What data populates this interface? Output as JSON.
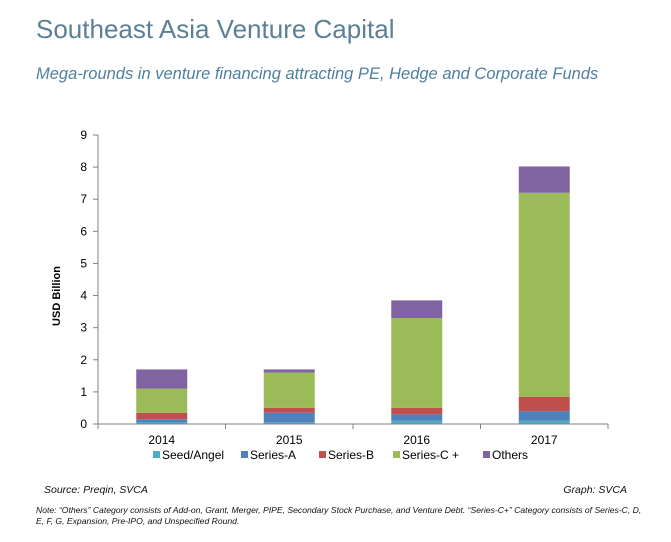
{
  "header": {
    "title": "Southeast Asia Venture Capital",
    "subtitle": "Mega-rounds in venture financing attracting PE, Hedge and Corporate Funds"
  },
  "footer": {
    "source": "Source: Preqin, SVCA",
    "graph_credit": "Graph: SVCA",
    "note": "Note: “Others” Category consists of Add-on, Grant, Merger, PIPE, Secondary Stock Purchase, and Venture Debt. “Series-C+” Category consists of Series-C, D, E, F, G, Expansion, Pre-IPO, and Unspecified Round."
  },
  "chart_data": {
    "type": "bar",
    "stacked": true,
    "categories": [
      "2014",
      "2015",
      "2016",
      "2017"
    ],
    "series": [
      {
        "name": "Seed/Angel",
        "color": "#4bacc6",
        "values": [
          0.05,
          0.05,
          0.1,
          0.1
        ]
      },
      {
        "name": "Series-A",
        "color": "#4f81bd",
        "values": [
          0.1,
          0.3,
          0.2,
          0.3
        ]
      },
      {
        "name": "Series-B",
        "color": "#c0504d",
        "values": [
          0.2,
          0.15,
          0.2,
          0.45
        ]
      },
      {
        "name": "Series-C +",
        "color": "#9bbb59",
        "values": [
          0.75,
          1.1,
          2.8,
          6.35
        ]
      },
      {
        "name": "Others",
        "color": "#8064a2",
        "values": [
          0.6,
          0.1,
          0.55,
          0.82
        ]
      }
    ],
    "xlabel": "",
    "ylabel": "USD Billion",
    "ylim": [
      0,
      9
    ],
    "yticks": [
      0,
      1,
      2,
      3,
      4,
      5,
      6,
      7,
      8,
      9
    ],
    "grid": false,
    "legend_position": "bottom"
  }
}
